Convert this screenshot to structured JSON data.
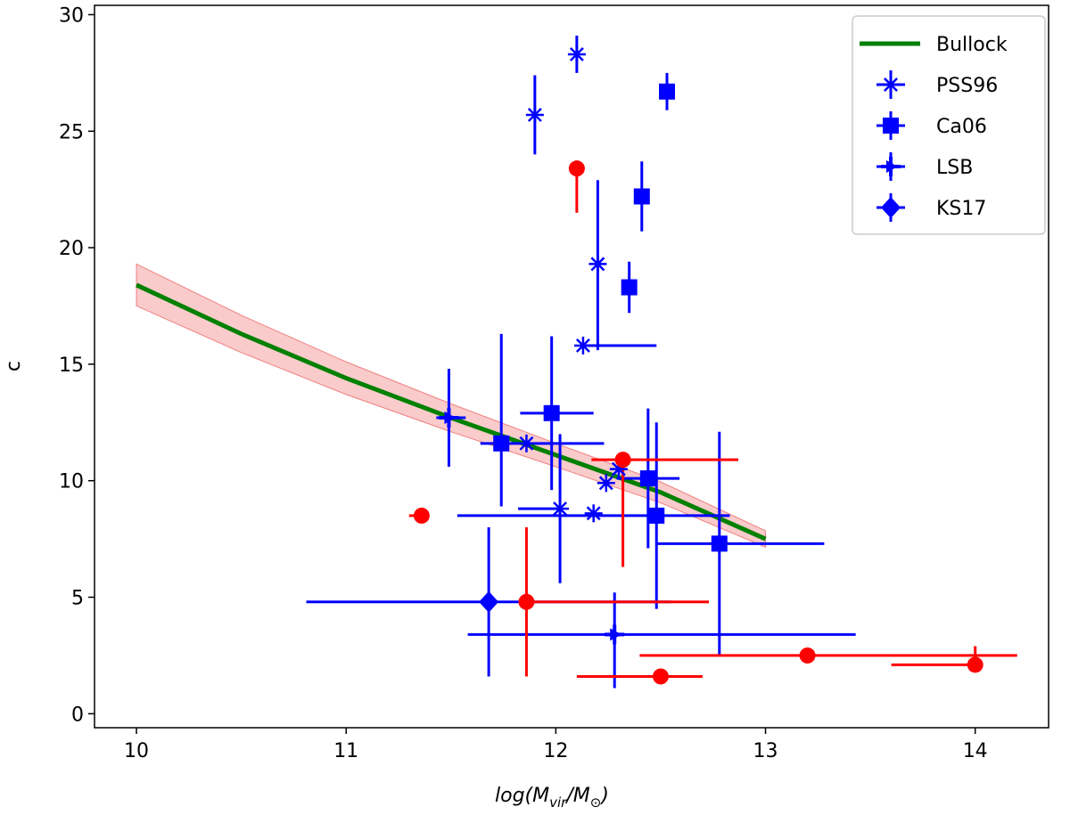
{
  "chart_data": {
    "type": "scatter",
    "title": "",
    "xlabel_parts": [
      "log(M",
      "vir",
      "/M",
      "⊙",
      ")"
    ],
    "ylabel": "c",
    "xlim": [
      9.8,
      14.35
    ],
    "ylim": [
      -0.6,
      30.4
    ],
    "xticks": [
      10,
      11,
      12,
      13,
      14
    ],
    "yticks": [
      0,
      5,
      10,
      15,
      20,
      25,
      30
    ],
    "colors": {
      "blue": "#0000ff",
      "red": "#ff0000",
      "green": "#008000",
      "band": "#f4a0a0"
    },
    "legend": {
      "position": "top-right",
      "entries": [
        {
          "label": "Bullock",
          "marker": "line"
        },
        {
          "label": "PSS96",
          "marker": "asterisk"
        },
        {
          "label": "Ca06",
          "marker": "square"
        },
        {
          "label": "LSB",
          "marker": "tri-right"
        },
        {
          "label": "KS17",
          "marker": "diamond"
        }
      ]
    },
    "bullock": {
      "x": [
        10.0,
        10.5,
        11.0,
        11.5,
        12.0,
        12.5,
        13.0
      ],
      "y": [
        18.4,
        16.3,
        14.4,
        12.7,
        11.1,
        9.5,
        7.5
      ],
      "band_half_width": [
        0.9,
        0.8,
        0.7,
        0.6,
        0.5,
        0.45,
        0.35
      ]
    },
    "series": [
      {
        "name": "PSS96",
        "marker": "asterisk",
        "color": "#0000ff",
        "points": [
          {
            "x": 12.1,
            "y": 28.3,
            "xerr": [
              0,
              0
            ],
            "yerr": [
              0.8,
              0.8
            ]
          },
          {
            "x": 11.9,
            "y": 25.7,
            "xerr": [
              0,
              0
            ],
            "yerr": [
              1.7,
              1.7
            ]
          },
          {
            "x": 12.2,
            "y": 19.3,
            "xerr": [
              0,
              0
            ],
            "yerr": [
              3.7,
              3.6
            ]
          },
          {
            "x": 12.13,
            "y": 15.8,
            "xerr": [
              0,
              0.35
            ],
            "yerr": [
              0,
              0
            ]
          },
          {
            "x": 11.86,
            "y": 11.6,
            "xerr": [
              0,
              0.37
            ],
            "yerr": [
              0,
              0
            ]
          },
          {
            "x": 12.02,
            "y": 8.8,
            "xerr": [
              0.2,
              0
            ],
            "yerr": [
              3.2,
              3.2
            ]
          },
          {
            "x": 12.18,
            "y": 8.6,
            "xerr": [
              0,
              0
            ],
            "yerr": [
              0,
              0
            ]
          },
          {
            "x": 12.24,
            "y": 9.9,
            "xerr": [
              0,
              0
            ],
            "yerr": [
              0,
              0
            ]
          },
          {
            "x": 12.3,
            "y": 10.5,
            "xerr": [
              0,
              0
            ],
            "yerr": [
              0,
              0
            ]
          }
        ]
      },
      {
        "name": "Ca06",
        "marker": "square",
        "color": "#0000ff",
        "points": [
          {
            "x": 12.53,
            "y": 26.7,
            "xerr": [
              0,
              0
            ],
            "yerr": [
              0.8,
              0.8
            ]
          },
          {
            "x": 12.41,
            "y": 22.2,
            "xerr": [
              0,
              0
            ],
            "yerr": [
              1.5,
              1.5
            ]
          },
          {
            "x": 12.35,
            "y": 18.3,
            "xerr": [
              0,
              0
            ],
            "yerr": [
              1.1,
              1.1
            ]
          },
          {
            "x": 11.98,
            "y": 12.9,
            "xerr": [
              0.15,
              0.2
            ],
            "yerr": [
              3.3,
              3.3
            ]
          },
          {
            "x": 11.74,
            "y": 11.6,
            "xerr": [
              0.1,
              0.1
            ],
            "yerr": [
              2.7,
              4.7
            ]
          },
          {
            "x": 12.44,
            "y": 10.1,
            "xerr": [
              0.15,
              0.15
            ],
            "yerr": [
              3.0,
              3.0
            ]
          },
          {
            "x": 12.48,
            "y": 8.5,
            "xerr": [
              0.95,
              0.35
            ],
            "yerr": [
              4.0,
              4.0
            ]
          },
          {
            "x": 12.78,
            "y": 7.3,
            "xerr": [
              0.3,
              0.5
            ],
            "yerr": [
              4.8,
              4.8
            ]
          }
        ]
      },
      {
        "name": "LSB",
        "marker": "tri-right",
        "color": "#0000ff",
        "points": [
          {
            "x": 11.49,
            "y": 12.7,
            "xerr": [
              0.06,
              0.08
            ],
            "yerr": [
              2.1,
              2.1
            ]
          },
          {
            "x": 12.28,
            "y": 3.4,
            "xerr": [
              0.7,
              1.15
            ],
            "yerr": [
              2.3,
              1.8
            ]
          }
        ]
      },
      {
        "name": "KS17",
        "marker": "diamond",
        "color": "#0000ff",
        "points": [
          {
            "x": 11.68,
            "y": 4.8,
            "xerr": [
              0.87,
              0.87
            ],
            "yerr": [
              3.2,
              3.2
            ]
          }
        ]
      },
      {
        "name": "red",
        "marker": "circle",
        "color": "#ff0000",
        "points": [
          {
            "x": 12.1,
            "y": 23.4,
            "xerr": [
              0,
              0
            ],
            "yerr": [
              1.9,
              0
            ]
          },
          {
            "x": 12.32,
            "y": 10.9,
            "xerr": [
              0.15,
              0.55
            ],
            "yerr": [
              4.6,
              0
            ]
          },
          {
            "x": 11.36,
            "y": 8.5,
            "xerr": [
              0.06,
              0
            ],
            "yerr": [
              0,
              0
            ]
          },
          {
            "x": 11.86,
            "y": 4.8,
            "xerr": [
              0,
              0.87
            ],
            "yerr": [
              3.2,
              3.2
            ]
          },
          {
            "x": 12.5,
            "y": 1.6,
            "xerr": [
              0.4,
              0.2
            ],
            "yerr": [
              0,
              0
            ]
          },
          {
            "x": 13.2,
            "y": 2.5,
            "xerr": [
              0.8,
              1.0
            ],
            "yerr": [
              0,
              0
            ]
          },
          {
            "x": 14.0,
            "y": 2.1,
            "xerr": [
              0.4,
              0
            ],
            "yerr": [
              0,
              0.8
            ]
          }
        ]
      }
    ]
  }
}
